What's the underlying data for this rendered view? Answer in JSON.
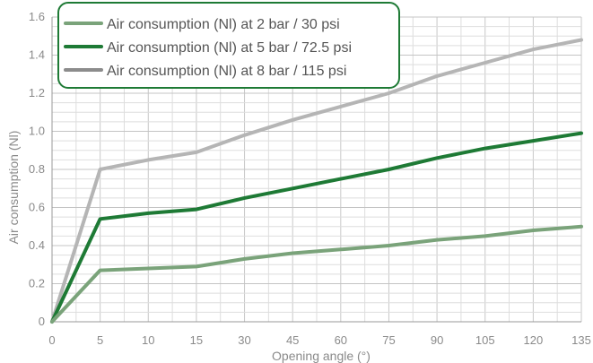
{
  "chart_data": {
    "type": "line",
    "title": "",
    "xlabel": "Opening angle (°)",
    "ylabel": "Air consumption (Nl)",
    "x": [
      "0",
      "5",
      "10",
      "15",
      "30",
      "45",
      "60",
      "75",
      "90",
      "105",
      "120",
      "135"
    ],
    "ylim": [
      0,
      1.6
    ],
    "yticks": [
      "0",
      "0.2",
      "0.4",
      "0.6",
      "0.8",
      "1.0",
      "1.2",
      "1.4",
      "1.6"
    ],
    "grid": true,
    "legend_position": "top-left",
    "series": [
      {
        "name": "Air consumption (Nl) at 2 bar / 30 psi",
        "color": "#7aa37a",
        "values": [
          0,
          0.27,
          0.28,
          0.29,
          0.33,
          0.36,
          0.38,
          0.4,
          0.43,
          0.45,
          0.48,
          0.5
        ]
      },
      {
        "name": "Air consumption (Nl) at 5 bar / 72.5 psi",
        "color": "#1e7a35",
        "values": [
          0,
          0.54,
          0.57,
          0.59,
          0.65,
          0.7,
          0.75,
          0.8,
          0.86,
          0.91,
          0.95,
          0.99
        ]
      },
      {
        "name": "Air consumption (Nl) at 8 bar / 115 psi",
        "color": "#b5b5b5",
        "values": [
          0,
          0.8,
          0.85,
          0.89,
          0.98,
          1.06,
          1.13,
          1.2,
          1.29,
          1.36,
          1.43,
          1.48
        ]
      }
    ],
    "legend_border_color": "#1e7a35",
    "legend_swatch_colors": [
      "#7aa37a",
      "#1e7a35",
      "#8c8c8c"
    ]
  }
}
